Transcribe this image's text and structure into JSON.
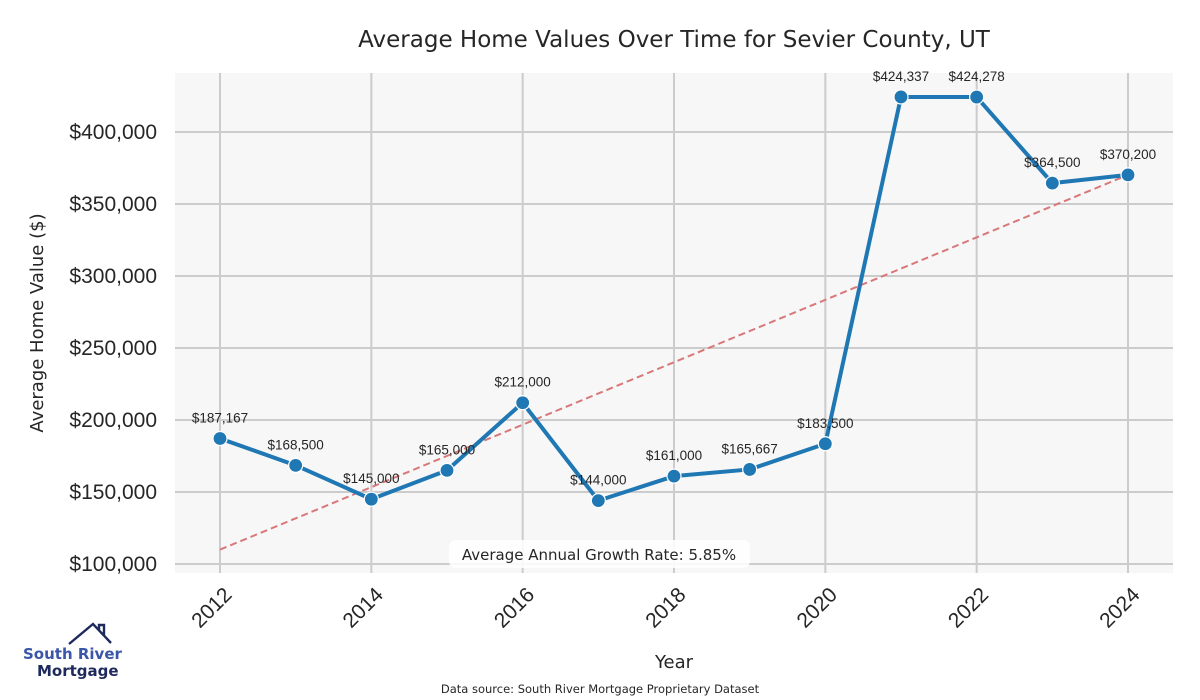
{
  "chart_data": {
    "type": "line",
    "title": "Average Home Values Over Time for Sevier County, UT",
    "xlabel": "Year",
    "ylabel": "Average Home Value ($)",
    "x": [
      2012,
      2013,
      2014,
      2015,
      2016,
      2017,
      2018,
      2019,
      2020,
      2021,
      2022,
      2023,
      2024
    ],
    "series": [
      {
        "name": "Average Home Value",
        "values": [
          187167,
          168500,
          145000,
          165000,
          212000,
          144000,
          161000,
          165667,
          183500,
          424337,
          424278,
          364500,
          370200
        ],
        "labels": [
          "$187,167",
          "$168,500",
          "$145,000",
          "$165,000",
          "$212,000",
          "$144,000",
          "$161,000",
          "$165,667",
          "$183,500",
          "$424,337",
          "$424,278",
          "$364,500",
          "$370,200"
        ],
        "color": "#1f77b4"
      },
      {
        "name": "Trend",
        "style": "dashed",
        "x": [
          2012,
          2024
        ],
        "values": [
          110000,
          370200
        ],
        "color": "#d9787a"
      }
    ],
    "xticks": [
      2012,
      2014,
      2016,
      2018,
      2020,
      2022,
      2024
    ],
    "xtick_labels": [
      "2012",
      "2014",
      "2016",
      "2018",
      "2020",
      "2022",
      "2024"
    ],
    "yticks": [
      100000,
      150000,
      200000,
      250000,
      300000,
      350000,
      400000
    ],
    "ytick_labels": [
      "$100,000",
      "$150,000",
      "$200,000",
      "$250,000",
      "$300,000",
      "$350,000",
      "$400,000"
    ],
    "xlim": [
      2011.3,
      2024.6
    ],
    "ylim": [
      94000,
      440000
    ],
    "grid": true,
    "annotation": "Average Annual Growth Rate: 5.85%",
    "source": "Data source: South River Mortgage Proprietary Dataset",
    "colors": {
      "background": "#f7f7f7",
      "grid": "#cccccc",
      "line": "#1f77b4",
      "trend": "#d9787a"
    }
  },
  "logo": {
    "line1": "South River",
    "line2": "Mortgage",
    "color1": "#3a56a8",
    "color2": "#1f2a5c"
  }
}
